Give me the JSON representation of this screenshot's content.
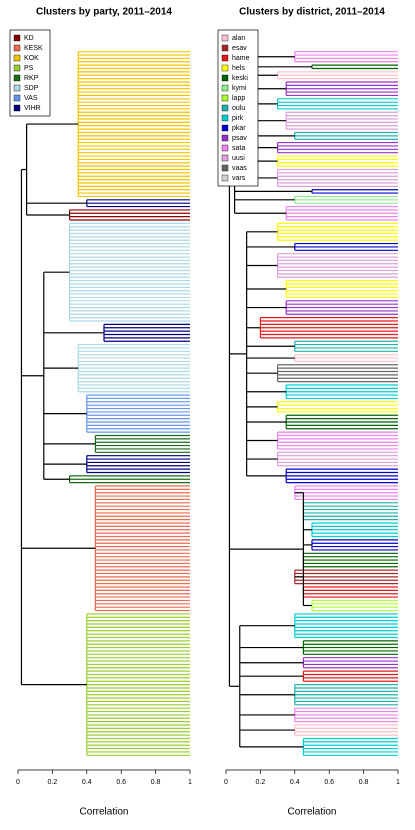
{
  "chart_data": [
    {
      "type": "dendrogram",
      "title": "Clusters by party, 2011–2014",
      "xlabel": "Correlation",
      "xlim": [
        0,
        1
      ],
      "xticks": [
        0,
        0.2,
        0.4,
        0.6,
        0.8,
        1
      ],
      "root": 0.02,
      "series": [
        {
          "name": "KD",
          "color": "#8b0000"
        },
        {
          "name": "KESK",
          "color": "#ee6a50"
        },
        {
          "name": "KOK",
          "color": "#f5c400"
        },
        {
          "name": "PS",
          "color": "#9acd32"
        },
        {
          "name": "RKP",
          "color": "#1a6b1a"
        },
        {
          "name": "SDP",
          "color": "#add8e6"
        },
        {
          "name": "VAS",
          "color": "#6495ed"
        },
        {
          "name": "VIHR",
          "color": "#000080"
        }
      ],
      "blocks": [
        {
          "merge": 0.05,
          "groups": [
            {
              "series": 2,
              "leaves": 44,
              "merge": 0.35
            },
            {
              "series": 7,
              "leaves": 3,
              "merge": 0.4
            },
            {
              "series": 0,
              "leaves": 4,
              "merge": 0.3
            }
          ]
        },
        {
          "merge": 0.15,
          "groups": [
            {
              "series": 5,
              "leaves": 30,
              "merge": 0.3
            },
            {
              "series": 7,
              "leaves": 6,
              "merge": 0.5
            },
            {
              "series": 5,
              "leaves": 15,
              "merge": 0.35
            },
            {
              "series": 6,
              "leaves": 12,
              "merge": 0.4
            },
            {
              "series": 4,
              "leaves": 6,
              "merge": 0.45
            },
            {
              "series": 7,
              "leaves": 6,
              "merge": 0.4
            },
            {
              "series": 4,
              "leaves": 3,
              "merge": 0.3
            }
          ]
        },
        {
          "merge": 0.45,
          "groups": [
            {
              "series": 1,
              "leaves": 38,
              "merge": 0.45
            }
          ]
        },
        {
          "merge": 0.1,
          "groups": [
            {
              "series": 3,
              "leaves": 43,
              "merge": 0.4
            }
          ]
        }
      ]
    },
    {
      "type": "dendrogram",
      "title": "Clusters by district, 2011–2014",
      "xlabel": "Correlation",
      "xlim": [
        0,
        1
      ],
      "xticks": [
        0,
        0.2,
        0.4,
        0.6,
        0.8,
        1
      ],
      "root": 0.02,
      "series": [
        {
          "name": "alan",
          "color": "#ffc0cb"
        },
        {
          "name": "esav",
          "color": "#a52a2a"
        },
        {
          "name": "hame",
          "color": "#e31a1c"
        },
        {
          "name": "hels",
          "color": "#ffff00"
        },
        {
          "name": "keski",
          "color": "#006400"
        },
        {
          "name": "kymi",
          "color": "#90ee90"
        },
        {
          "name": "lapp",
          "color": "#adff2f"
        },
        {
          "name": "oulu",
          "color": "#20b2aa"
        },
        {
          "name": "pirk",
          "color": "#00ced1"
        },
        {
          "name": "pkar",
          "color": "#0000cd"
        },
        {
          "name": "psav",
          "color": "#9932cc"
        },
        {
          "name": "sata",
          "color": "#ee82ee"
        },
        {
          "name": "uusi",
          "color": "#dda0dd"
        },
        {
          "name": "vaas",
          "color": "#666666"
        },
        {
          "name": "vars",
          "color": "#d3d3d3"
        }
      ],
      "blocks": [
        {
          "merge": 0.05,
          "groups": [
            {
              "series": 11,
              "leaves": 4,
              "merge": 0.4
            },
            {
              "series": 4,
              "leaves": 2,
              "merge": 0.5
            },
            {
              "series": 0,
              "leaves": 3,
              "merge": 0.3
            },
            {
              "series": 10,
              "leaves": 5,
              "merge": 0.35
            },
            {
              "series": 8,
              "leaves": 4,
              "merge": 0.3
            },
            {
              "series": 12,
              "leaves": 6,
              "merge": 0.35
            },
            {
              "series": 7,
              "leaves": 3,
              "merge": 0.4
            },
            {
              "series": 10,
              "leaves": 4,
              "merge": 0.3
            },
            {
              "series": 3,
              "leaves": 4,
              "merge": 0.3
            },
            {
              "series": 12,
              "leaves": 6,
              "merge": 0.3
            },
            {
              "series": 9,
              "leaves": 2,
              "merge": 0.5
            },
            {
              "series": 5,
              "leaves": 3,
              "merge": 0.4
            },
            {
              "series": 11,
              "leaves": 5,
              "merge": 0.35
            }
          ]
        },
        {
          "merge": 0.12,
          "groups": [
            {
              "series": 3,
              "leaves": 6,
              "merge": 0.3
            },
            {
              "series": 9,
              "leaves": 3,
              "merge": 0.4
            },
            {
              "series": 12,
              "leaves": 8,
              "merge": 0.3
            },
            {
              "series": 3,
              "leaves": 6,
              "merge": 0.35
            },
            {
              "series": 10,
              "leaves": 5,
              "merge": 0.35
            },
            {
              "series": 2,
              "leaves": 7,
              "merge": 0.2
            },
            {
              "series": 7,
              "leaves": 4,
              "merge": 0.4
            },
            {
              "series": 0,
              "leaves": 3,
              "merge": 0.4
            },
            {
              "series": 13,
              "leaves": 6,
              "merge": 0.3
            },
            {
              "series": 8,
              "leaves": 5,
              "merge": 0.35
            },
            {
              "series": 3,
              "leaves": 4,
              "merge": 0.3
            },
            {
              "series": 4,
              "leaves": 5,
              "merge": 0.35
            },
            {
              "series": 11,
              "leaves": 6,
              "merge": 0.3
            },
            {
              "series": 12,
              "leaves": 5,
              "merge": 0.3
            },
            {
              "series": 9,
              "leaves": 5,
              "merge": 0.35
            }
          ]
        },
        {
          "merge": 0.45,
          "groups": [
            {
              "series": 11,
              "leaves": 5,
              "merge": 0.4
            },
            {
              "series": 7,
              "leaves": 6,
              "merge": 0.45
            },
            {
              "series": 8,
              "leaves": 5,
              "merge": 0.5
            },
            {
              "series": 9,
              "leaves": 4,
              "merge": 0.5
            },
            {
              "series": 4,
              "leaves": 5,
              "merge": 0.45
            },
            {
              "series": 1,
              "leaves": 5,
              "merge": 0.4
            },
            {
              "series": 2,
              "leaves": 4,
              "merge": 0.45
            },
            {
              "series": 6,
              "leaves": 4,
              "merge": 0.5
            }
          ]
        },
        {
          "merge": 0.08,
          "groups": [
            {
              "series": 8,
              "leaves": 8,
              "merge": 0.4
            },
            {
              "series": 4,
              "leaves": 5,
              "merge": 0.45
            },
            {
              "series": 10,
              "leaves": 4,
              "merge": 0.45
            },
            {
              "series": 2,
              "leaves": 4,
              "merge": 0.45
            },
            {
              "series": 7,
              "leaves": 7,
              "merge": 0.4
            },
            {
              "series": 11,
              "leaves": 5,
              "merge": 0.4
            },
            {
              "series": 0,
              "leaves": 4,
              "merge": 0.4
            },
            {
              "series": 8,
              "leaves": 6,
              "merge": 0.45
            }
          ]
        }
      ]
    }
  ]
}
